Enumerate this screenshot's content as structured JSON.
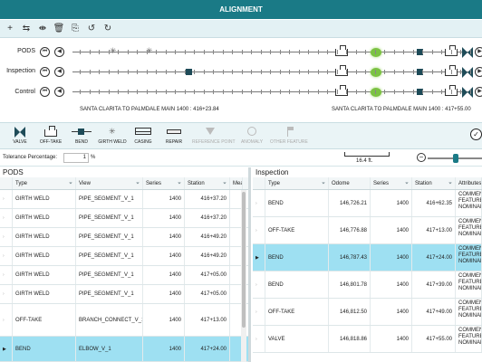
{
  "window": {
    "title": "ALIGNMENT"
  },
  "toolbar": {
    "icons": [
      "plus-icon",
      "align-icon",
      "split-icon",
      "delete-icon",
      "copy-icon",
      "undo-icon",
      "redo-icon"
    ],
    "glyphs": [
      "+",
      "⇆",
      "⇼",
      "🗑",
      "⎘",
      "↺",
      "↻"
    ]
  },
  "tracks": [
    {
      "label": "PODS"
    },
    {
      "label": "Inspection"
    },
    {
      "label": "Control"
    }
  ],
  "track_buttons": {
    "first": "⏮",
    "prev": "◀",
    "next": "▶"
  },
  "segments": {
    "left": "SANTA CLARITA TO PALMDALE MAIN 1400 : 416+23.84",
    "right": "SANTA CLARITA TO PALMDALE MAIN 1400 : 417+55.00"
  },
  "legend": [
    {
      "label": "VALVE",
      "icon": "valve-icon",
      "enabled": true
    },
    {
      "label": "OFF-TAKE",
      "icon": "off-take-icon",
      "enabled": true
    },
    {
      "label": "BEND",
      "icon": "bend-icon",
      "enabled": true
    },
    {
      "label": "GIRTH WELD",
      "icon": "girth-weld-icon",
      "enabled": true
    },
    {
      "label": "CASING",
      "icon": "casing-icon",
      "enabled": true
    },
    {
      "label": "REPAIR",
      "icon": "repair-icon",
      "enabled": true
    },
    {
      "label": "REFERENCE POINT",
      "icon": "reference-point-icon",
      "enabled": false
    },
    {
      "label": "ANOMALY",
      "icon": "anomaly-icon",
      "enabled": false
    },
    {
      "label": "OTHER FEATURE",
      "icon": "other-feature-icon",
      "enabled": false
    }
  ],
  "tolerance": {
    "label": "Tolerance Percentage:",
    "value": "1",
    "unit": "%"
  },
  "scale": {
    "label": "16.4 ft."
  },
  "zoom": {
    "minus": "−"
  },
  "pods": {
    "title": "PODS",
    "columns": [
      "Type",
      "View",
      "Series",
      "Station",
      "Mea"
    ],
    "rows": [
      {
        "type": "GIRTH WELD",
        "view": "PIPE_SEGMENT_V_1",
        "series": "1400",
        "station": "416+37.20"
      },
      {
        "type": "GIRTH WELD",
        "view": "PIPE_SEGMENT_V_1",
        "series": "1400",
        "station": "416+37.20"
      },
      {
        "type": "GIRTH WELD",
        "view": "PIPE_SEGMENT_V_1",
        "series": "1400",
        "station": "416+49.20"
      },
      {
        "type": "GIRTH WELD",
        "view": "PIPE_SEGMENT_V_1",
        "series": "1400",
        "station": "416+49.20"
      },
      {
        "type": "GIRTH WELD",
        "view": "PIPE_SEGMENT_V_1",
        "series": "1400",
        "station": "417+05.00"
      },
      {
        "type": "GIRTH WELD",
        "view": "PIPE_SEGMENT_V_1",
        "series": "1400",
        "station": "417+05.00"
      },
      {
        "type": "OFF-TAKE",
        "view": "BRANCH_CONNECT_V_1",
        "series": "1400",
        "station": "417+13.00"
      },
      {
        "type": "BEND",
        "view": "ELBOW_V_1",
        "series": "1400",
        "station": "417+24.00"
      }
    ]
  },
  "inspection": {
    "title": "Inspection",
    "columns": [
      "Type",
      "Odome",
      "Series",
      "Station",
      "Attributes"
    ],
    "rows": [
      {
        "type": "BEND",
        "odometer": "146,726.21",
        "series": "1400",
        "station": "416+62.35",
        "attributes": "COMMEN FEATURE_ NOMINAL"
      },
      {
        "type": "OFF-TAKE",
        "odometer": "146,776.88",
        "series": "1400",
        "station": "417+13.00",
        "attributes": "COMMEN FEATURE_ NOMINAL"
      },
      {
        "type": "BEND",
        "odometer": "146,787.43",
        "series": "1400",
        "station": "417+24.00",
        "attributes": "COMMEN FEATURE_ NOMINAL"
      },
      {
        "type": "BEND",
        "odometer": "146,801.78",
        "series": "1400",
        "station": "417+39.00",
        "attributes": "COMMEN FEATURE_ NOMINAL"
      },
      {
        "type": "OFF-TAKE",
        "odometer": "146,812.50",
        "series": "1400",
        "station": "417+49.00",
        "attributes": "COMMEN FEATURE_ NOMINAL"
      },
      {
        "type": "VALVE",
        "odometer": "146,818.86",
        "series": "1400",
        "station": "417+55.00",
        "attributes": "COMMEN FEATURE_ NOMINAL"
      }
    ]
  },
  "colors": {
    "accent": "#1a7a86",
    "selected_row": "#9ee0f2",
    "highlight": "#7bc242",
    "marker": "#1e4b58"
  }
}
